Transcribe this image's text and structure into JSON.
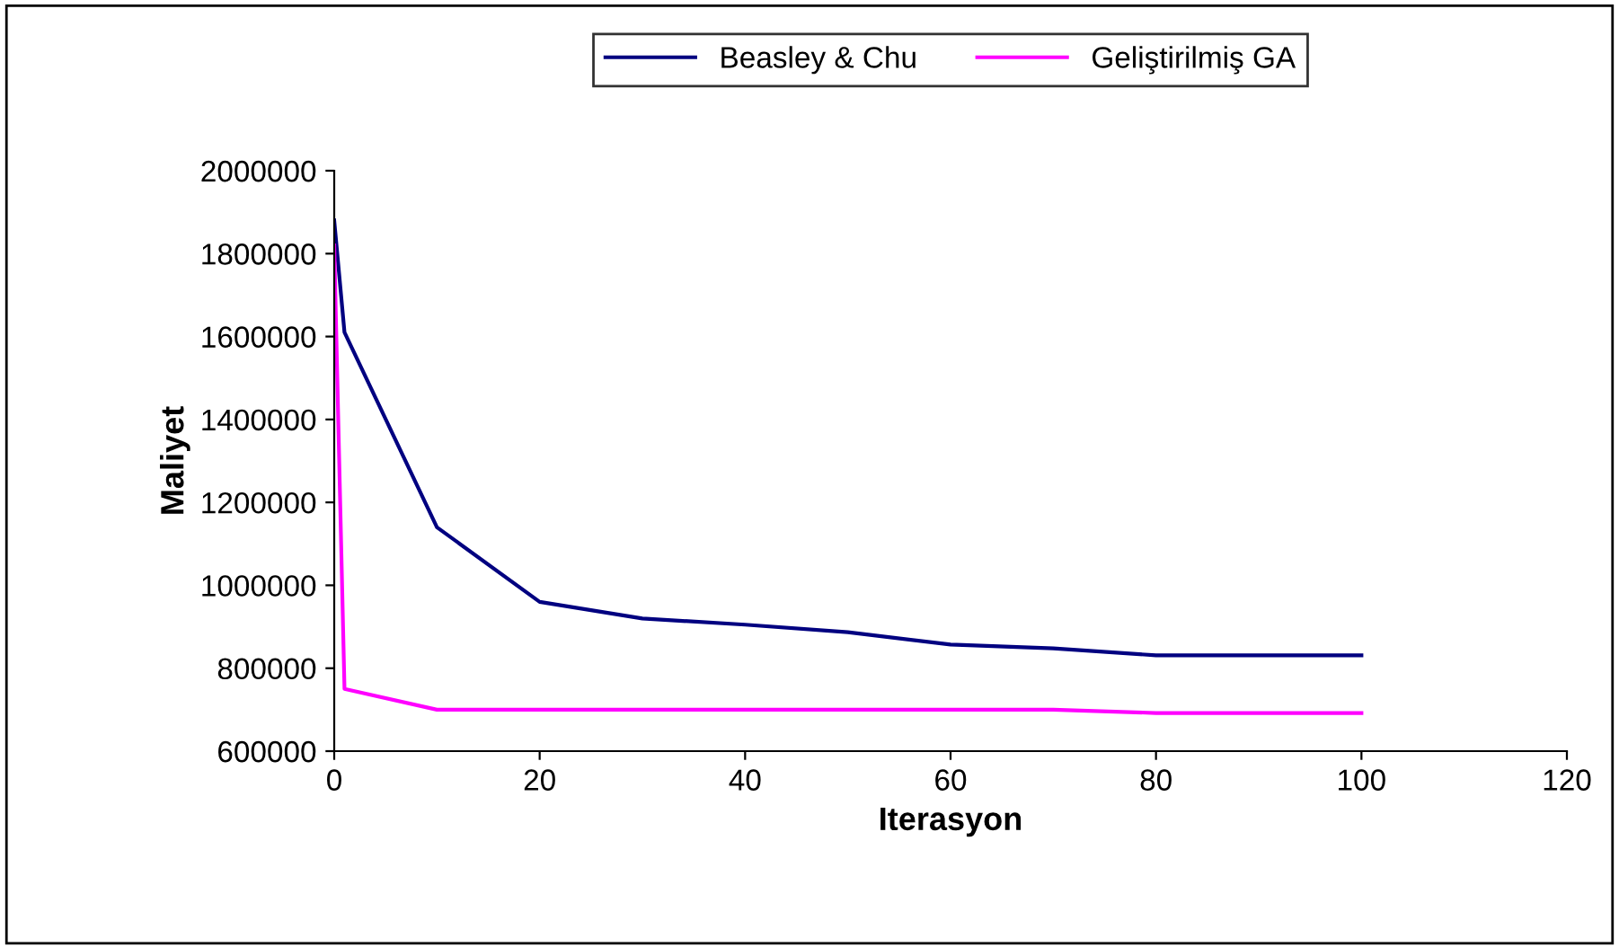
{
  "chart_data": {
    "type": "line",
    "xlabel": "Iterasyon",
    "ylabel": "Maliyet",
    "x": [
      0,
      1,
      10,
      20,
      30,
      40,
      50,
      60,
      70,
      80,
      90,
      100
    ],
    "series": [
      {
        "name": "Beasley & Chu",
        "color": "#000080",
        "values": [
          1880000,
          1610000,
          1140000,
          960000,
          920000,
          905000,
          887000,
          857000,
          848000,
          831000,
          831000,
          831000
        ]
      },
      {
        "name": "Geliştirilmiş GA",
        "color": "#ff00ff",
        "values": [
          1820000,
          750000,
          700000,
          700000,
          700000,
          700000,
          700000,
          700000,
          700000,
          692000,
          692000,
          692000
        ]
      }
    ],
    "xlim": [
      0,
      120
    ],
    "xticks": [
      0,
      20,
      40,
      60,
      80,
      100,
      120
    ],
    "ylim": [
      600000,
      2000000
    ],
    "yticks": [
      600000,
      800000,
      1000000,
      1200000,
      1400000,
      1600000,
      1800000,
      2000000
    ],
    "grid": false,
    "legend": "top",
    "marker": "none",
    "line_style": "solid"
  }
}
